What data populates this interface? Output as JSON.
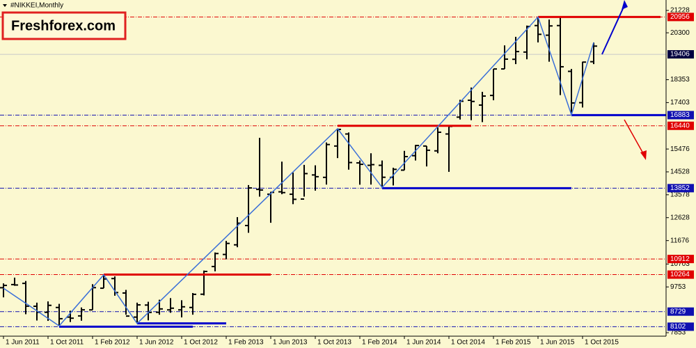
{
  "brand": "Freshforex.com",
  "chart_data": {
    "type": "ohlc",
    "title": "#NIKKEI,Monthly",
    "categories": [
      "1 Jun 2011",
      null,
      null,
      null,
      "1 Oct 2011",
      null,
      null,
      null,
      "1 Feb 2012",
      null,
      null,
      null,
      "1 Jun 2012",
      null,
      null,
      null,
      "1 Oct 2012",
      null,
      null,
      null,
      "1 Feb 2013",
      null,
      null,
      null,
      "1 Jun 2013",
      null,
      null,
      null,
      "1 Oct 2013",
      null,
      null,
      null,
      "1 Feb 2014",
      null,
      null,
      null,
      "1 Jun 2014",
      null,
      null,
      null,
      "1 Oct 2014",
      null,
      null,
      null,
      "1 Feb 2015",
      null,
      null,
      null,
      "1 Jun 2015",
      null,
      null,
      null,
      "1 Oct 2015",
      null
    ],
    "open": [
      9720,
      9850,
      9900,
      8950,
      8700,
      8900,
      8500,
      8550,
      8800,
      9700,
      10100,
      9500,
      8500,
      9000,
      8700,
      8800,
      8800,
      8900,
      9450,
      10600,
      11100,
      11500,
      12300,
      13800,
      13600,
      13700,
      13600,
      13400,
      14400,
      14300,
      15600,
      16100,
      14900,
      14800,
      14800,
      14300,
      14600,
      15200,
      15600,
      15400,
      16100,
      16800,
      17500,
      17300,
      17700,
      18800,
      19200,
      19500,
      20600,
      20200,
      20600,
      18700,
      17400,
      19100
    ],
    "high": [
      9900,
      10138,
      10000,
      9100,
      9152,
      9050,
      8766,
      8900,
      9866,
      10255,
      10190,
      9630,
      9100,
      9137,
      9222,
      9288,
      9200,
      9500,
      10433,
      11183,
      11663,
      12650,
      13980,
      15942,
      13700,
      14953,
      14500,
      14818,
      14800,
      15749,
      16320,
      16164,
      15000,
      15300,
      15000,
      14700,
      15400,
      15645,
      15600,
      16374,
      16400,
      17520,
      18030,
      17850,
      18800,
      19778,
      20133,
      20600,
      20952,
      20850,
      20946,
      18800,
      19100,
      19900
    ],
    "low": [
      9320,
      9800,
      8619,
      8359,
      8343,
      8135,
      8296,
      8350,
      8800,
      9700,
      9388,
      8600,
      8238,
      8365,
      8600,
      8680,
      8488,
      8600,
      9400,
      10400,
      10900,
      11400,
      12000,
      13500,
      12415,
      13600,
      13188,
      13500,
      13748,
      14000,
      15100,
      14619,
      13995,
      14000,
      13885,
      13964,
      14600,
      15000,
      14753,
      15300,
      14529,
      16700,
      16672,
      16592,
      17500,
      18800,
      19000,
      19200,
      19900,
      19100,
      17714,
      16901,
      17200,
      19000
    ],
    "close": [
      9816,
      9833,
      8955,
      8700,
      8988,
      8434,
      8455,
      8802,
      9723,
      10083,
      9520,
      8543,
      9007,
      8695,
      8840,
      8870,
      8928,
      9446,
      10395,
      11139,
      11559,
      12398,
      13861,
      13775,
      13677,
      13668,
      13389,
      14456,
      14328,
      15662,
      16291,
      14915,
      14841,
      14828,
      14304,
      14632,
      15162,
      15621,
      15425,
      16173,
      16414,
      17459,
      17451,
      17674,
      18798,
      19207,
      19520,
      20563,
      20236,
      20585,
      18890,
      17388,
      19083,
      19747
    ],
    "color": "#000000",
    "ylim": [
      7709,
      21661
    ],
    "yticks": [
      21228,
      20300,
      18353,
      17403,
      15476,
      14528,
      13578,
      12628,
      11676,
      10703,
      9753,
      7853
    ],
    "levels": [
      {
        "value": 20956,
        "color": "#e00000"
      },
      {
        "value": 16883,
        "color": "#1010b0"
      },
      {
        "value": 16440,
        "color": "#e00000"
      },
      {
        "value": 13852,
        "color": "#1010b0"
      },
      {
        "value": 10912,
        "color": "#e00000"
      },
      {
        "value": 10264,
        "color": "#e00000"
      },
      {
        "value": 8729,
        "color": "#1010b0"
      },
      {
        "value": 8102,
        "color": "#1010b0"
      }
    ],
    "last_price": {
      "value": 19406,
      "color": "#000040"
    },
    "segments": [
      {
        "value": 20956,
        "from": 48,
        "to": 59,
        "color": "#e00000"
      },
      {
        "value": 16440,
        "from": 30,
        "to": 42,
        "color": "#e00000"
      },
      {
        "value": 10264,
        "from": 9,
        "to": 24,
        "color": "#e00000"
      },
      {
        "value": 16883,
        "from": 51,
        "to": 60,
        "color": "#0000cc"
      },
      {
        "value": 13852,
        "from": 34,
        "to": 51,
        "color": "#0000cc"
      },
      {
        "value": 8102,
        "from": 5,
        "to": 17,
        "color": "#0000cc"
      },
      {
        "value": 8238,
        "from": 12,
        "to": 20,
        "color": "#0000cc"
      }
    ],
    "zigzag": {
      "x": [
        0,
        5,
        9,
        12,
        30,
        34,
        48,
        51,
        53
      ],
      "values": [
        9700,
        8135,
        10255,
        8238,
        16320,
        13885,
        20952,
        16901,
        19900
      ],
      "color": "#3a6fd8"
    }
  }
}
